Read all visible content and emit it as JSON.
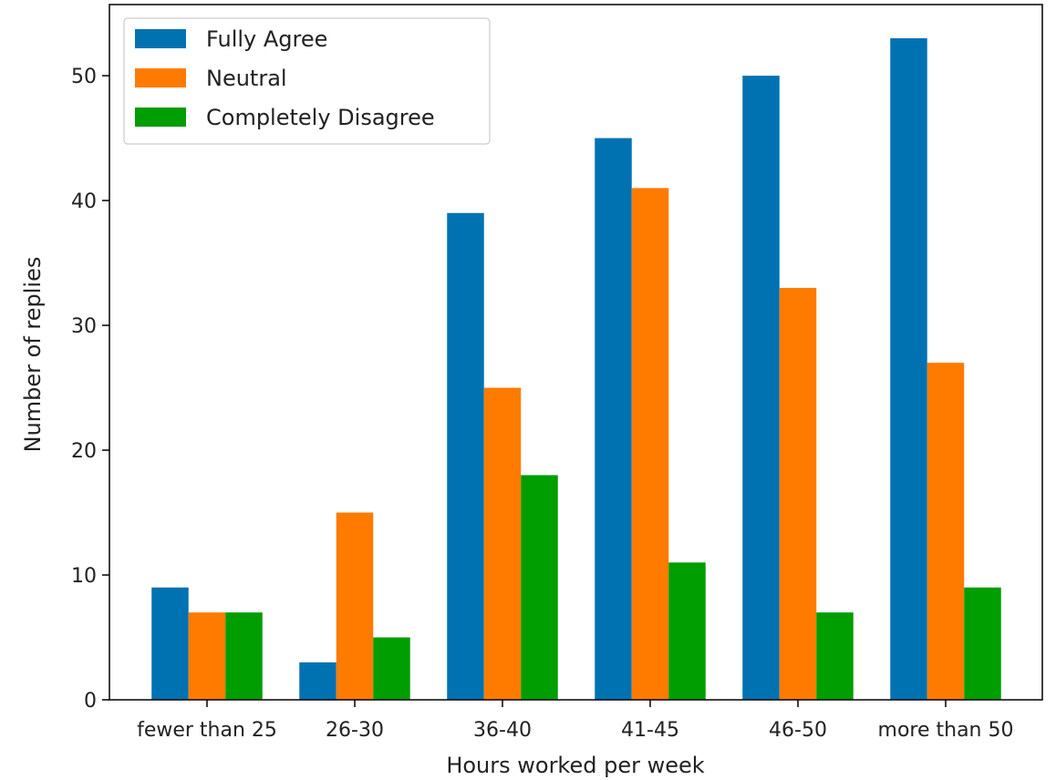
{
  "chart_data": {
    "type": "bar",
    "title": "",
    "xlabel": "Hours worked per week",
    "ylabel": "Number of replies",
    "categories": [
      "fewer than 25",
      "26-30",
      "36-40",
      "41-45",
      "46-50",
      "more than 50"
    ],
    "series": [
      {
        "name": "Fully Agree",
        "color": "#0072b2",
        "values": [
          9,
          3,
          39,
          45,
          50,
          53
        ]
      },
      {
        "name": "Neutral",
        "color": "#ff7b00",
        "values": [
          7,
          15,
          25,
          41,
          33,
          27
        ]
      },
      {
        "name": "Completely Disagree",
        "color": "#009e00",
        "values": [
          7,
          5,
          18,
          11,
          7,
          9
        ]
      }
    ],
    "ylim": [
      0,
      55.7
    ],
    "yticks": [
      0,
      10,
      20,
      30,
      40,
      50
    ],
    "legend": "top-left",
    "grid": false
  }
}
